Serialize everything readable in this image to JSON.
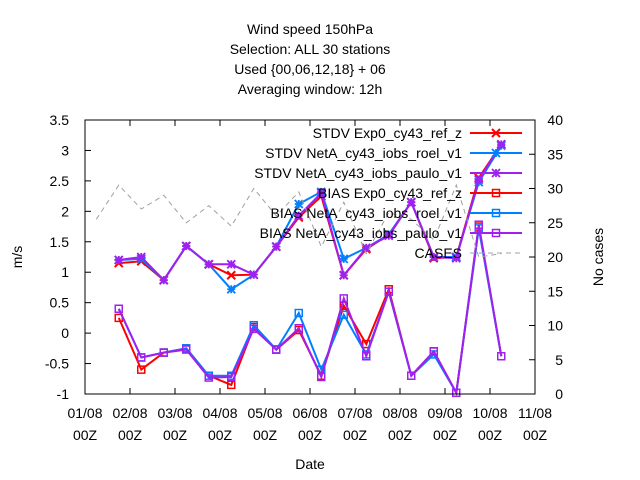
{
  "title_lines": [
    "Wind speed 150hPa",
    "Selection: ALL      30 stations",
    "Used {00,06,12,18} + 06",
    "Averaging window: 12h"
  ],
  "chart_data": {
    "type": "line",
    "title": "Wind speed 150hPa",
    "xlabel": "Date",
    "ylabel": "m/s",
    "y2label": "No cases",
    "ylim": [
      -1,
      3.5
    ],
    "y2lim": [
      0,
      40
    ],
    "yticks": [
      "-1",
      "-0.5",
      "0",
      "0.5",
      "1",
      "1.5",
      "2",
      "2.5",
      "3",
      "3.5"
    ],
    "y2ticks": [
      "0",
      "5",
      "10",
      "15",
      "20",
      "25",
      "30",
      "35",
      "40"
    ],
    "xticks": [
      {
        "top": "01/08",
        "bottom": "00Z"
      },
      {
        "top": "02/08",
        "bottom": "00Z"
      },
      {
        "top": "03/08",
        "bottom": "00Z"
      },
      {
        "top": "04/08",
        "bottom": "00Z"
      },
      {
        "top": "05/08",
        "bottom": "00Z"
      },
      {
        "top": "06/08",
        "bottom": "00Z"
      },
      {
        "top": "07/08",
        "bottom": "00Z"
      },
      {
        "top": "08/08",
        "bottom": "00Z"
      },
      {
        "top": "09/08",
        "bottom": "00Z"
      },
      {
        "top": "10/08",
        "bottom": "00Z"
      },
      {
        "top": "11/08",
        "bottom": "00Z"
      }
    ],
    "x": [
      "2020-08-01 18Z",
      "2020-08-02 06Z",
      "2020-08-02 18Z",
      "2020-08-03 06Z",
      "2020-08-03 18Z",
      "2020-08-04 06Z",
      "2020-08-04 18Z",
      "2020-08-05 06Z",
      "2020-08-05 18Z",
      "2020-08-06 06Z",
      "2020-08-06 18Z",
      "2020-08-07 06Z",
      "2020-08-07 18Z",
      "2020-08-08 06Z",
      "2020-08-08 18Z",
      "2020-08-09 06Z",
      "2020-08-09 18Z",
      "2020-08-10 06Z"
    ],
    "legend_position": "top-right",
    "series": [
      {
        "name": "STDV Exp0_cy43_ref_z",
        "color": "#ff0000",
        "marker": "x",
        "axis": "y1",
        "values": [
          1.15,
          1.18,
          0.87,
          1.43,
          1.13,
          0.95,
          0.96,
          1.42,
          1.9,
          2.25,
          0.95,
          1.38,
          1.62,
          2.15,
          1.23,
          1.25,
          2.55,
          3.1
        ]
      },
      {
        "name": "STDV NetA_cy43_iobs_roel_v1",
        "color": "#0080ff",
        "marker": "star",
        "axis": "y1",
        "values": [
          1.2,
          1.22,
          0.87,
          1.43,
          1.13,
          0.72,
          0.96,
          1.42,
          2.12,
          2.32,
          1.22,
          1.4,
          1.62,
          2.15,
          1.25,
          1.25,
          2.48,
          3.08
        ]
      },
      {
        "name": "STDV NetA_cy43_iobs_paulo_v1",
        "color": "#a020f0",
        "marker": "star",
        "axis": "y1",
        "values": [
          1.2,
          1.25,
          0.87,
          1.43,
          1.13,
          1.13,
          0.96,
          1.42,
          1.93,
          2.3,
          0.95,
          1.4,
          1.6,
          2.15,
          1.25,
          1.23,
          2.52,
          3.1
        ]
      },
      {
        "name": "BIAS Exp0_cy43_ref_z",
        "color": "#ff0000",
        "marker": "square",
        "axis": "y1",
        "values": [
          0.25,
          -0.6,
          -0.32,
          -0.25,
          -0.7,
          -0.85,
          0.1,
          -0.27,
          0.05,
          -0.7,
          0.45,
          -0.18,
          0.72,
          -0.7,
          -0.3,
          -0.98,
          1.75,
          -0.38
        ]
      },
      {
        "name": "BIAS NetA_cy43_iobs_roel_v1",
        "color": "#0080ff",
        "marker": "square",
        "axis": "y1",
        "values": [
          0.4,
          -0.4,
          -0.32,
          -0.25,
          -0.7,
          -0.7,
          0.13,
          -0.27,
          0.33,
          -0.6,
          0.3,
          -0.35,
          0.68,
          -0.7,
          -0.35,
          -0.98,
          1.72,
          -0.38
        ]
      },
      {
        "name": "BIAS NetA_cy43_iobs_paulo_v1",
        "color": "#a020f0",
        "marker": "square",
        "axis": "y1",
        "values": [
          0.4,
          -0.4,
          -0.32,
          -0.27,
          -0.73,
          -0.72,
          0.07,
          -0.27,
          0.08,
          -0.72,
          0.57,
          -0.38,
          0.68,
          -0.7,
          -0.3,
          -0.98,
          1.78,
          -0.38
        ]
      },
      {
        "name": "CASES",
        "color": "#a0a0a0",
        "marker": "none",
        "dashed": true,
        "axis": "y2",
        "x": [
          "2020-08-01 06Z",
          "2020-08-01 18Z",
          "2020-08-02 06Z",
          "2020-08-02 18Z",
          "2020-08-03 06Z",
          "2020-08-03 18Z",
          "2020-08-04 06Z",
          "2020-08-04 18Z",
          "2020-08-05 06Z",
          "2020-08-05 18Z",
          "2020-08-06 06Z",
          "2020-08-06 18Z",
          "2020-08-07 06Z",
          "2020-08-07 18Z",
          "2020-08-08 06Z",
          "2020-08-08 18Z",
          "2020-08-09 06Z",
          "2020-08-09 18Z",
          "2020-08-10 06Z"
        ],
        "values": [
          25.5,
          30.5,
          27.0,
          29.0,
          25.0,
          27.5,
          24.5,
          30.0,
          26.0,
          29.5,
          21.5,
          28.0,
          20.5,
          26.5,
          25.5,
          22.5,
          30.5,
          20.0,
          20.5
        ]
      }
    ]
  }
}
